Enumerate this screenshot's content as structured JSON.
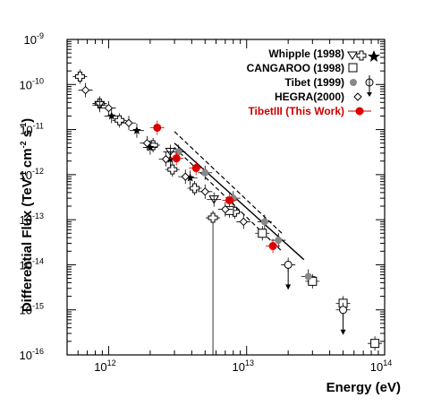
{
  "chart_data": {
    "type": "scatter",
    "title": "",
    "xlabel": "Energy (eV)",
    "ylabel": "Differential Flux (TeV cm s )",
    "ylabel_parts": {
      "main": "Differential Flux (TeV",
      "sup1": "-1",
      "mid1": " cm",
      "sup2": "-2",
      "mid2": " s",
      "sup3": "-1",
      "end": ")"
    },
    "x_scale": "log",
    "y_scale": "log",
    "xlim": [
      500000000000.0,
      100000000000000.0
    ],
    "ylim": [
      1e-16,
      1e-09
    ],
    "x_ticks": [
      {
        "value": 1000000000000.0,
        "base": "10",
        "exp": "12"
      },
      {
        "value": 10000000000000.0,
        "base": "10",
        "exp": "13"
      },
      {
        "value": 100000000000000.0,
        "base": "10",
        "exp": "14"
      }
    ],
    "y_ticks": [
      {
        "value": 1e-09,
        "base": "10",
        "exp": "-9"
      },
      {
        "value": 1e-10,
        "base": "10",
        "exp": "-10"
      },
      {
        "value": 1e-11,
        "base": "10",
        "exp": "-11"
      },
      {
        "value": 1e-12,
        "base": "10",
        "exp": "-12"
      },
      {
        "value": 1e-13,
        "base": "10",
        "exp": "-13"
      },
      {
        "value": 1e-14,
        "base": "10",
        "exp": "-14"
      },
      {
        "value": 1e-15,
        "base": "10",
        "exp": "-15"
      },
      {
        "value": 1e-16,
        "base": "10",
        "exp": "-16"
      }
    ],
    "legend_position": "top-right",
    "legend": [
      {
        "label": "Whipple (1998)",
        "markers": [
          "triangle-down",
          "cross",
          "star"
        ],
        "color": "#000000"
      },
      {
        "label": "CANGAROO (1998)",
        "markers": [
          "square"
        ],
        "color": "#000000"
      },
      {
        "label": "Tibet (1999)",
        "markers": [
          "filled-circle-gray",
          "open-circle",
          "arrow-down"
        ],
        "color": "#000000"
      },
      {
        "label": "HEGRA(2000)",
        "markers": [
          "diamond"
        ],
        "color": "#000000"
      },
      {
        "label": "TibetIII (This Work)",
        "markers": [
          "filled-circle-red"
        ],
        "color": "#cc0000"
      }
    ],
    "colors": {
      "tibet_iii": "#dd0000",
      "tibet_1999": "#888888",
      "ink": "#000000"
    },
    "series": [
      {
        "name": "Whipple (1998)",
        "marker": "cross",
        "points": [
          {
            "x": 620000000000.0,
            "y": 1.5e-10
          },
          {
            "x": 860000000000.0,
            "y": 3.8e-11
          },
          {
            "x": 1200000000000.0,
            "y": 1.6e-11
          },
          {
            "x": 2100000000000.0,
            "y": 4.5e-12
          },
          {
            "x": 2900000000000.0,
            "y": 1.3e-12
          },
          {
            "x": 4200000000000.0,
            "y": 5e-13
          },
          {
            "x": 5700000000000.0,
            "y": 1.1e-13,
            "yerr_low": 1e-16
          },
          {
            "x": 8200000000000.0,
            "y": 1.5e-13
          }
        ]
      },
      {
        "name": "Whipple (1998)",
        "marker": "triangle-down",
        "points": [
          {
            "x": 860000000000.0,
            "y": 3.5e-11
          },
          {
            "x": 2800000000000.0,
            "y": 3.2e-12
          },
          {
            "x": 5800000000000.0,
            "y": 2.8e-13
          }
        ]
      },
      {
        "name": "Whipple (1998)",
        "marker": "star",
        "points": [
          {
            "x": 1050000000000.0,
            "y": 2e-11
          },
          {
            "x": 1600000000000.0,
            "y": 9.5e-12
          },
          {
            "x": 2000000000000.0,
            "y": 4e-12
          },
          {
            "x": 2800000000000.0,
            "y": 2.2e-12
          },
          {
            "x": 3900000000000.0,
            "y": 8.5e-13
          }
        ]
      },
      {
        "name": "CANGAROO (1998)",
        "marker": "square",
        "points": [
          {
            "x": 7500000000000.0,
            "y": 1.6e-13
          },
          {
            "x": 13000000000000.0,
            "y": 5e-14
          },
          {
            "x": 30000000000000.0,
            "y": 4.3e-15
          },
          {
            "x": 50000000000000.0,
            "y": 1.4e-15
          },
          {
            "x": 85000000000000.0,
            "y": 1.8e-16
          }
        ]
      },
      {
        "name": "Tibet (1999)",
        "marker": "filled-circle-gray",
        "points": [
          {
            "x": 3200000000000.0,
            "y": 3.2e-12
          },
          {
            "x": 5000000000000.0,
            "y": 1.1e-12
          },
          {
            "x": 8000000000000.0,
            "y": 3e-13
          },
          {
            "x": 13500000000000.0,
            "y": 9e-14
          },
          {
            "x": 17000000000000.0,
            "y": 3.5e-14
          },
          {
            "x": 28000000000000.0,
            "y": 5.5e-15
          }
        ]
      },
      {
        "name": "Tibet (1999)",
        "marker": "open-circle",
        "points": [
          {
            "x": 20000000000000.0,
            "y": 1e-14,
            "upper_limit": true
          },
          {
            "x": 50000000000000.0,
            "y": 1e-15,
            "upper_limit": true
          }
        ]
      },
      {
        "name": "HEGRA(2000)",
        "marker": "diamond",
        "points": [
          {
            "x": 680000000000.0,
            "y": 7.5e-11
          },
          {
            "x": 1000000000000.0,
            "y": 3e-11
          },
          {
            "x": 1400000000000.0,
            "y": 1.4e-11
          },
          {
            "x": 1900000000000.0,
            "y": 5e-12
          },
          {
            "x": 2600000000000.0,
            "y": 2.2e-12
          },
          {
            "x": 3600000000000.0,
            "y": 9e-13
          },
          {
            "x": 5000000000000.0,
            "y": 4.2e-13
          },
          {
            "x": 7000000000000.0,
            "y": 1.7e-13
          },
          {
            "x": 9500000000000.0,
            "y": 9e-14
          }
        ]
      },
      {
        "name": "TibetIII (This Work)",
        "marker": "filled-circle-red",
        "points": [
          {
            "x": 2250000000000.0,
            "y": 1.1e-11
          },
          {
            "x": 3100000000000.0,
            "y": 2.3e-12
          },
          {
            "x": 4300000000000.0,
            "y": 1.4e-12
          },
          {
            "x": 7500000000000.0,
            "y": 2.7e-13
          },
          {
            "x": 15500000000000.0,
            "y": 2.6e-14
          }
        ]
      }
    ],
    "fit_lines": [
      {
        "style": "solid",
        "x1": 3000000000000.0,
        "y1": 5e-12,
        "x2": 26000000000000.0,
        "y2": 1.3e-14
      },
      {
        "style": "dashed",
        "x1": 3000000000000.0,
        "y1": 9e-12,
        "x2": 18000000000000.0,
        "y2": 5e-14
      },
      {
        "style": "dashed",
        "x1": 3000000000000.0,
        "y1": 4e-12,
        "x2": 18000000000000.0,
        "y2": 2e-14
      }
    ]
  }
}
